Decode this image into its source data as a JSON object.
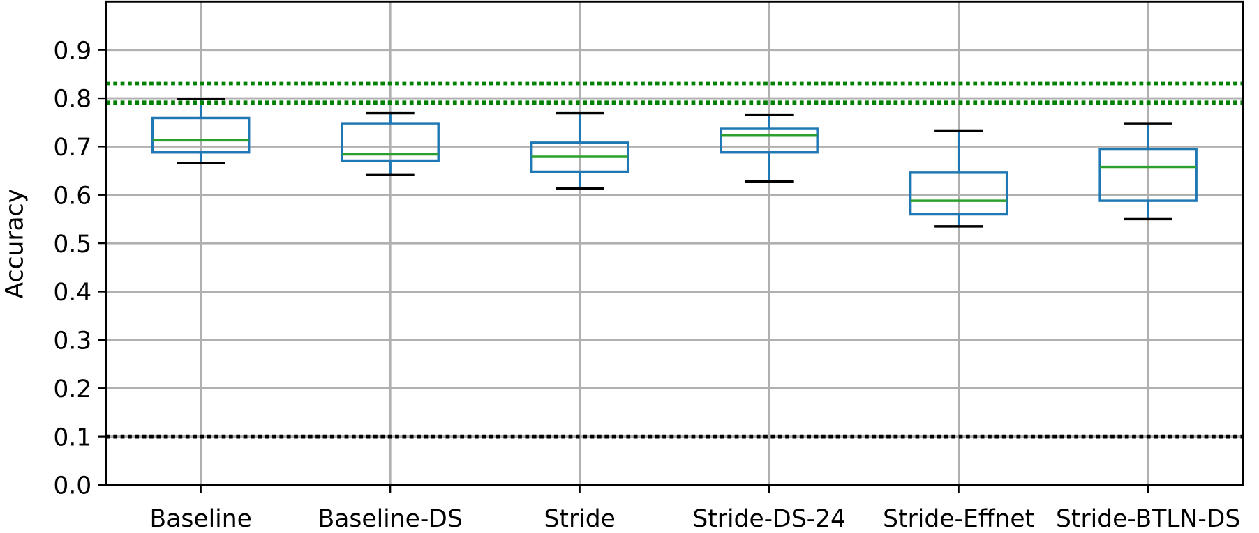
{
  "chart_data": {
    "type": "box",
    "y_label": "Accuracy",
    "categories": [
      "Baseline",
      "Baseline-DS",
      "Stride",
      "Stride-DS-24",
      "Stride-Effnet",
      "Stride-BTLN-DS"
    ],
    "boxes": [
      {
        "whislo": 0.666,
        "q1": 0.688,
        "median": 0.713,
        "q3": 0.759,
        "whishi": 0.799
      },
      {
        "whislo": 0.641,
        "q1": 0.671,
        "median": 0.684,
        "q3": 0.748,
        "whishi": 0.769
      },
      {
        "whislo": 0.613,
        "q1": 0.648,
        "median": 0.679,
        "q3": 0.708,
        "whishi": 0.769
      },
      {
        "whislo": 0.628,
        "q1": 0.688,
        "median": 0.724,
        "q3": 0.738,
        "whishi": 0.766
      },
      {
        "whislo": 0.535,
        "q1": 0.56,
        "median": 0.588,
        "q3": 0.646,
        "whishi": 0.733
      },
      {
        "whislo": 0.55,
        "q1": 0.588,
        "median": 0.658,
        "q3": 0.694,
        "whishi": 0.748
      }
    ],
    "box_color": "#1f77b4",
    "median_color": "#2ca02c",
    "cap_color": "#000000",
    "reference_lines": [
      {
        "value": 0.831,
        "color": "#008000"
      },
      {
        "value": 0.791,
        "color": "#008000"
      },
      {
        "value": 0.1,
        "color": "#000000"
      }
    ],
    "ylim": [
      0,
      1.0
    ],
    "yticks": [
      {
        "value": 0,
        "label": "0.0"
      },
      0.1,
      0.2,
      0.3,
      0.4,
      0.5,
      0.6,
      0.7,
      0.8,
      0.9
    ],
    "grid": true
  }
}
